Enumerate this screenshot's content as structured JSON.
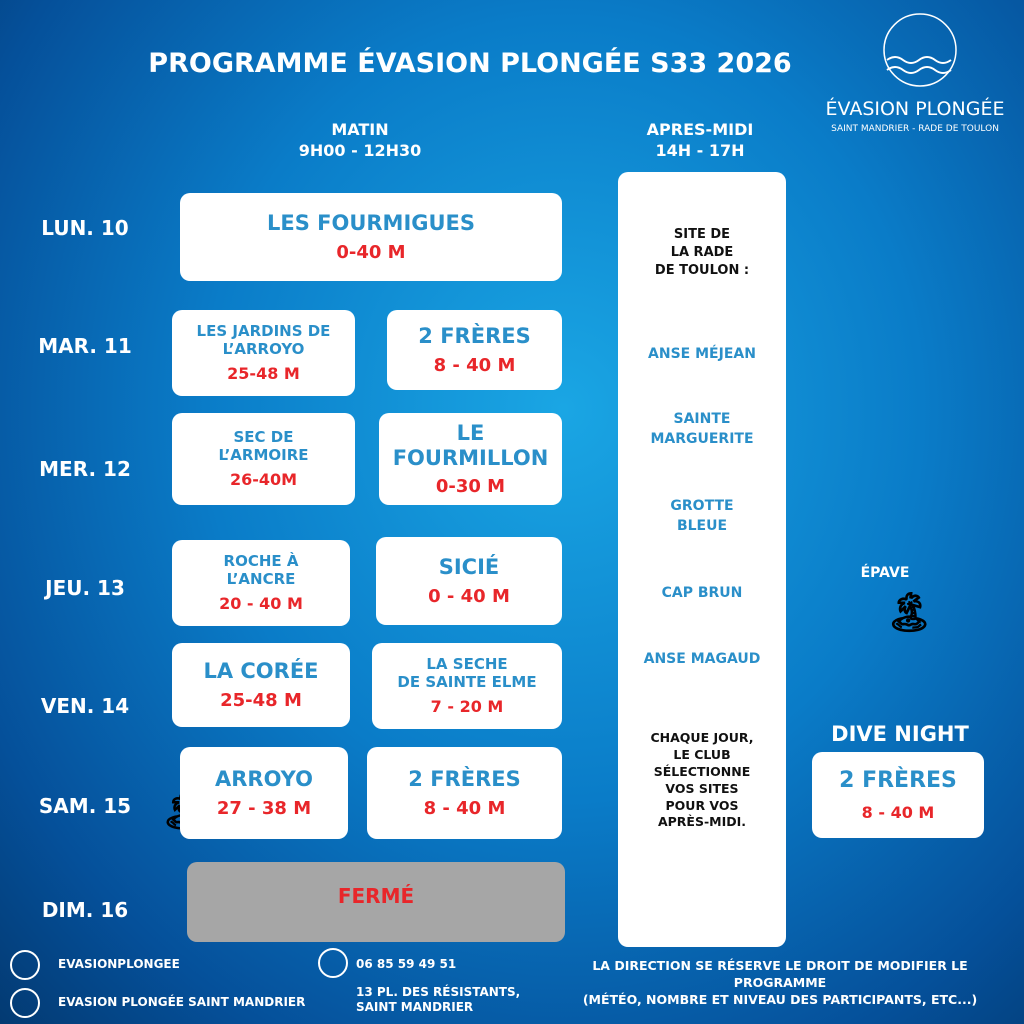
{
  "header": {
    "title": "PROGRAMME ÉVASION PLONGÉE S33 2026"
  },
  "logo": {
    "name": "ÉVASION PLONGÉE",
    "tagline": "SAINT MANDRIER - RADE DE TOULON"
  },
  "columns": {
    "morning": {
      "label": "MATIN",
      "hours": "9H00 - 12H30"
    },
    "afternoon": {
      "label": "APRES-MIDI",
      "hours": "14H - 17H"
    }
  },
  "schedule": [
    {
      "day": "LUN. 10",
      "slots": [
        {
          "name": [
            "LES FOURMIGUES"
          ],
          "depth": "0-40 M"
        }
      ]
    },
    {
      "day": "MAR. 11",
      "slots": [
        {
          "name": [
            "LES JARDINS DE",
            "L’ARROYO"
          ],
          "depth": "25-48 M"
        },
        {
          "name": [
            "2 FRÈRES"
          ],
          "depth": "8 - 40 M"
        }
      ]
    },
    {
      "day": "MER. 12",
      "slots": [
        {
          "name": [
            "SEC  DE",
            "L’ARMOIRE"
          ],
          "depth": "26-40M"
        },
        {
          "name": [
            "LE FOURMILLON"
          ],
          "depth": "0-30 M"
        }
      ]
    },
    {
      "day": "JEU. 13",
      "slots": [
        {
          "name": [
            "ROCHE À",
            "L’ANCRE"
          ],
          "depth": "20 - 40 M"
        },
        {
          "name": [
            "SICIÉ"
          ],
          "depth": "0 - 40 M"
        }
      ]
    },
    {
      "day": "VEN. 14",
      "slots": [
        {
          "name": [
            "LA CORÉE"
          ],
          "depth": "25-48 M"
        },
        {
          "name": [
            "LA SECHE",
            "DE SAINTE ELME"
          ],
          "depth": "7 - 20 M"
        }
      ]
    },
    {
      "day": "SAM. 15",
      "slots": [
        {
          "name": [
            "ARROYO"
          ],
          "depth": "27 - 38 M"
        },
        {
          "name": [
            "2 FRÈRES"
          ],
          "depth": "8 - 40 M"
        }
      ]
    },
    {
      "day": "DIM. 16",
      "closed": "FERMÉ"
    }
  ],
  "afternoon": {
    "intro": [
      "SITE DE",
      "LA RADE",
      "DE TOULON :"
    ],
    "sites": [
      [
        "ANSE MÉJEAN"
      ],
      [
        "SAINTE",
        "MARGUERITE"
      ],
      [
        "GROTTE",
        "BLEUE"
      ],
      [
        "CAP BRUN"
      ],
      [
        "ANSE MAGAUD"
      ]
    ],
    "note": [
      "CHAQUE JOUR,",
      "LE CLUB",
      "SÉLECTIONNE",
      "VOS SITES",
      "POUR VOS",
      "APRÈS-MIDI."
    ]
  },
  "wreck_label": "ÉPAVE",
  "night": {
    "label": "DIVE NIGHT",
    "name": "2 FRÈRES",
    "depth": "8 - 40 M"
  },
  "footer": {
    "instagram": "EVASIONPLONGEE",
    "facebook": "EVASION PLONGÉE SAINT MANDRIER",
    "phone": "06 85 59 49 51",
    "address": [
      "13 PL. DES RÉSISTANTS,",
      "SAINT MANDRIER"
    ],
    "disclaimer": [
      "LA DIRECTION SE RÉSERVE LE DROIT DE MODIFIER LE",
      "PROGRAMME",
      "(MÉTÉO, NOMBRE  ET NIVEAU DES PARTICIPANTS, ETC...)"
    ]
  }
}
